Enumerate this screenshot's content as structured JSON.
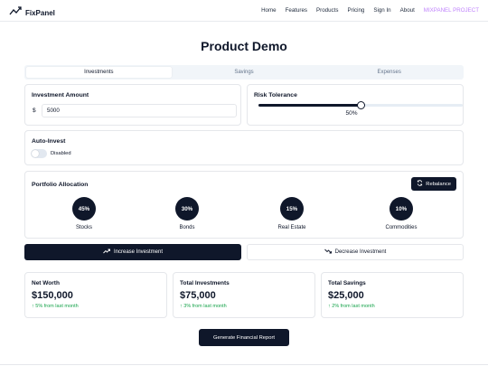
{
  "brand": {
    "name": "FixPanel"
  },
  "nav": {
    "links": [
      "Home",
      "Features",
      "Products",
      "Pricing",
      "Sign In",
      "About"
    ],
    "project_label": "MIXPANEL PROJECT",
    "accent_color": "#c084fc"
  },
  "page": {
    "title": "Product Demo"
  },
  "tabs": [
    {
      "label": "Investments",
      "active": true
    },
    {
      "label": "Savings",
      "active": false
    },
    {
      "label": "Expenses",
      "active": false
    }
  ],
  "investment": {
    "label": "Investment Amount",
    "currency": "$",
    "value": "5000"
  },
  "risk": {
    "label": "Risk Tolerance",
    "value_text": "50%",
    "level": 0.5
  },
  "auto_invest": {
    "label": "Auto-Invest",
    "status": "Disabled",
    "enabled": false
  },
  "allocation": {
    "label": "Portfolio Allocation",
    "rebalance_label": "Rebalance",
    "items": [
      {
        "percent": "45%",
        "name": "Stocks"
      },
      {
        "percent": "30%",
        "name": "Bonds"
      },
      {
        "percent": "15%",
        "name": "Real Estate"
      },
      {
        "percent": "10%",
        "name": "Commodities"
      }
    ]
  },
  "actions": {
    "increase": "Increase Investment",
    "decrease": "Decrease Investment"
  },
  "stats": [
    {
      "title": "Net Worth",
      "value": "$150,000",
      "change": "↑ 5% from last month"
    },
    {
      "title": "Total Investments",
      "value": "$75,000",
      "change": "↑ 3% from last month"
    },
    {
      "title": "Total Savings",
      "value": "$25,000",
      "change": "↑ 2% from last month"
    }
  ],
  "report": {
    "label": "Generate Financial Report"
  },
  "colors": {
    "primary": "#0f172a",
    "positive": "#16a34a"
  }
}
